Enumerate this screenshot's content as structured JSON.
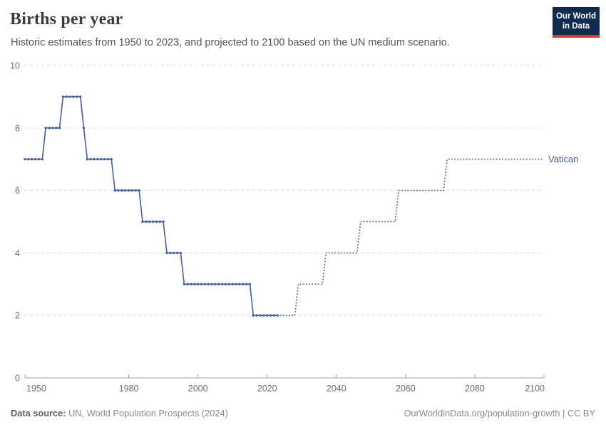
{
  "header": {
    "title": "Births per year",
    "subtitle": "Historic estimates from 1950 to 2023, and projected to 2100 based on the UN medium scenario.",
    "logo": {
      "line1": "Our World",
      "line2": "in Data"
    }
  },
  "chart_data": {
    "type": "line",
    "title": "Births per year",
    "entity": "Vatican",
    "xlabel": "",
    "ylabel": "",
    "xlim": [
      1950,
      2100
    ],
    "ylim": [
      0,
      10
    ],
    "x_ticks": [
      1950,
      1980,
      2000,
      2020,
      2040,
      2060,
      2080,
      2100
    ],
    "y_ticks": [
      0,
      2,
      4,
      6,
      8,
      10
    ],
    "grid": true,
    "legend_position": "end-of-line",
    "series": [
      {
        "name": "Vatican (historic estimates, 1950-2023)",
        "style": "solid-with-markers",
        "segments": [
          {
            "from": 1950,
            "to": 1955,
            "value": 7
          },
          {
            "from": 1956,
            "to": 1960,
            "value": 8
          },
          {
            "from": 1961,
            "to": 1966,
            "value": 9
          },
          {
            "from": 1967,
            "to": 1967,
            "value": 8
          },
          {
            "from": 1968,
            "to": 1975,
            "value": 7
          },
          {
            "from": 1976,
            "to": 1983,
            "value": 6
          },
          {
            "from": 1984,
            "to": 1990,
            "value": 5
          },
          {
            "from": 1991,
            "to": 1995,
            "value": 4
          },
          {
            "from": 1996,
            "to": 2015,
            "value": 3
          },
          {
            "from": 2016,
            "to": 2023,
            "value": 2
          }
        ]
      },
      {
        "name": "Vatican (UN medium scenario projection, 2023-2100)",
        "style": "dotted",
        "segments": [
          {
            "from": 2023,
            "to": 2028,
            "value": 2
          },
          {
            "from": 2029,
            "to": 2036,
            "value": 3
          },
          {
            "from": 2037,
            "to": 2046,
            "value": 4
          },
          {
            "from": 2047,
            "to": 2057,
            "value": 5
          },
          {
            "from": 2058,
            "to": 2071,
            "value": 6
          },
          {
            "from": 2072,
            "to": 2100,
            "value": 7
          }
        ]
      }
    ]
  },
  "colors": {
    "line": "#44619C",
    "grid": "#DEDEDE",
    "axis": "#A3A3A3",
    "tick_text": "#6E6E6E",
    "logo_bg": "#112B4E",
    "logo_red": "#D7383E"
  },
  "footer": {
    "data_source_label": "Data source:",
    "data_source_value": "UN, World Population Prospects (2024)",
    "license": "OurWorldinData.org/population-growth | CC BY"
  }
}
